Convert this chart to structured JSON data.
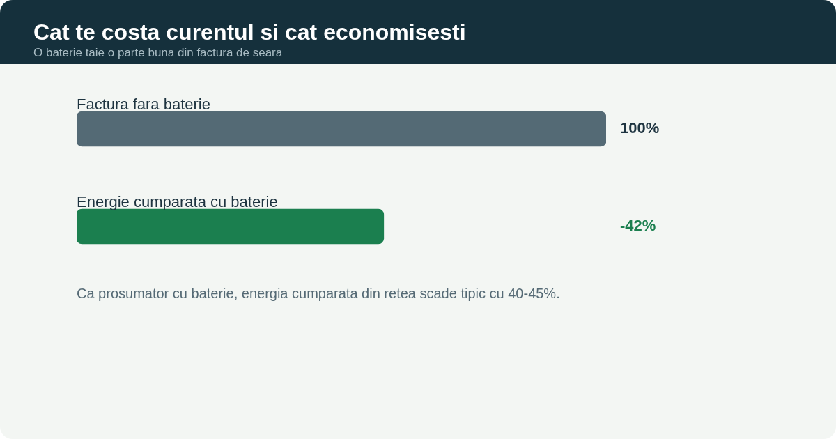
{
  "chart_data": {
    "type": "bar",
    "orientation": "horizontal",
    "title": "Cat te costa curentul si cat economisesti",
    "subtitle": "O baterie taie o parte buna din factura de seara",
    "categories": [
      "Factura fara baterie",
      "Energie cumparata cu baterie"
    ],
    "values": [
      100,
      58
    ],
    "colors": [
      "#546a75",
      "#1b7f4f"
    ],
    "value_labels": [
      "100%",
      null
    ],
    "xlim": [
      0,
      100
    ],
    "legend": false,
    "annotations": [
      "-42%",
      "Ca prosumator cu baterie, energia cumparata din retea scade tipic cu 40-45%."
    ]
  }
}
